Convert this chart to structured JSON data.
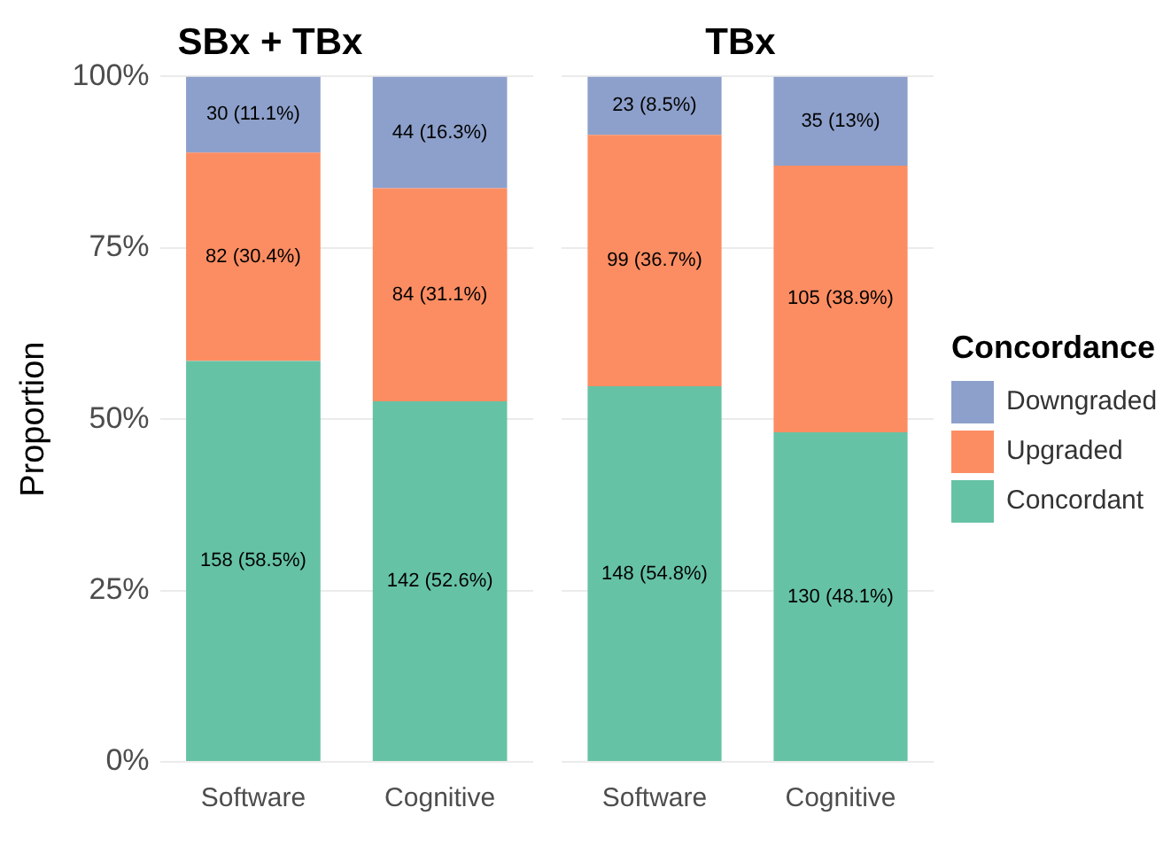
{
  "chart_data": [
    {
      "type": "bar",
      "title": "SBx + TBx",
      "ylabel": "Proportion",
      "categories": [
        "Software",
        "Cognitive"
      ],
      "stacked": true,
      "ylim": [
        0,
        1
      ],
      "yticks": [
        {
          "value": 0,
          "label": "0%"
        },
        {
          "value": 0.25,
          "label": "25%"
        },
        {
          "value": 0.5,
          "label": "50%"
        },
        {
          "value": 0.75,
          "label": "75%"
        },
        {
          "value": 1,
          "label": "100%"
        }
      ],
      "grid": "y",
      "legend": false,
      "series": [
        {
          "color": "#66c2a5",
          "values": [
            0.585,
            0.526
          ],
          "value_labels": [
            "158 (58.5%)",
            "142 (52.6%)"
          ]
        },
        {
          "color": "#fc8d62",
          "values": [
            0.304,
            0.311
          ],
          "value_labels": [
            "82 (30.4%)",
            "84 (31.1%)"
          ]
        },
        {
          "color": "#8da0cb",
          "values": [
            0.111,
            0.163
          ],
          "value_labels": [
            "30 (11.1%)",
            "44 (16.3%)"
          ]
        }
      ]
    },
    {
      "type": "bar",
      "title": "TBx",
      "categories": [
        "Software",
        "Cognitive"
      ],
      "stacked": true,
      "ylim": [
        0,
        1
      ],
      "yticks": [
        0,
        0.25,
        0.5,
        0.75,
        1
      ],
      "grid": "y",
      "tick_labels": "x",
      "legend": "right",
      "legend_title": "Concordance",
      "series": [
        {
          "name": "Concordant",
          "color": "#66c2a5",
          "values": [
            0.548,
            0.481
          ],
          "value_labels": [
            "148 (54.8%)",
            "130 (48.1%)"
          ]
        },
        {
          "name": "Upgraded",
          "color": "#fc8d62",
          "values": [
            0.367,
            0.389
          ],
          "value_labels": [
            "99 (36.7%)",
            "105 (38.9%)"
          ]
        },
        {
          "name": "Downgraded",
          "color": "#8da0cb",
          "values": [
            0.085,
            0.13
          ],
          "value_labels": [
            "23 (8.5%)",
            "35 (13%)"
          ]
        }
      ]
    }
  ]
}
